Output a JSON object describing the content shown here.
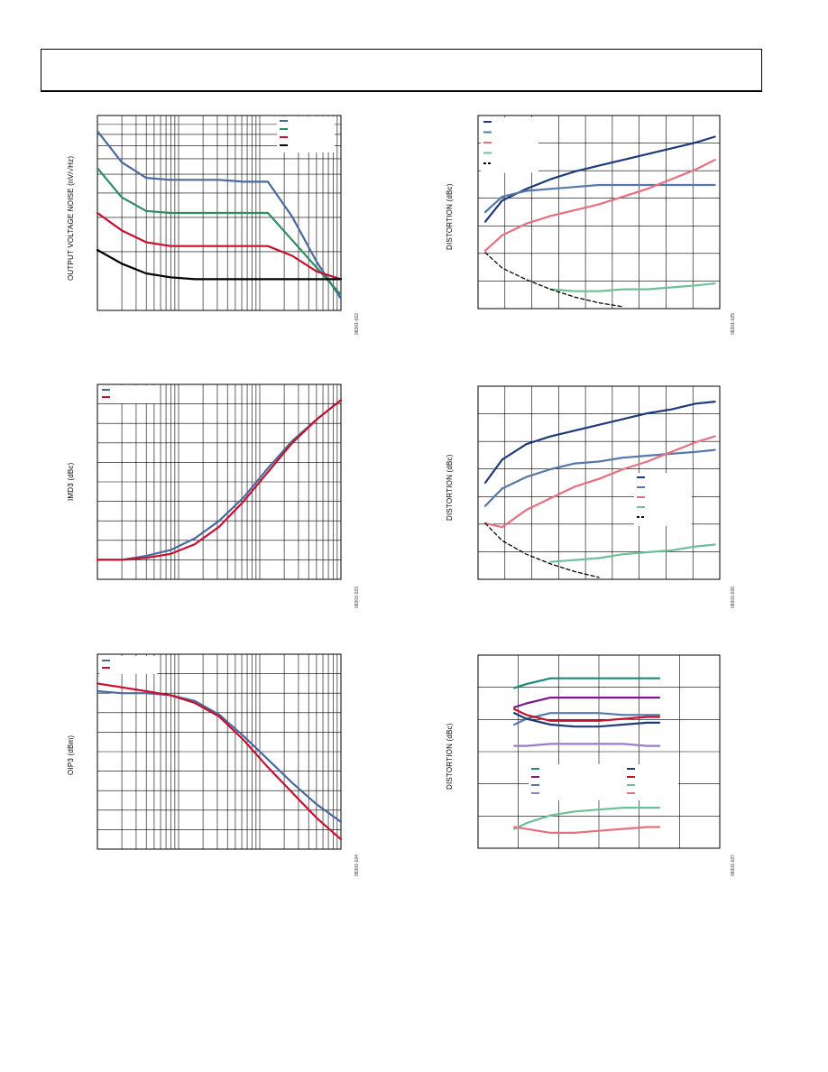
{
  "page": {
    "header": ""
  },
  "charts": [
    {
      "id": "c1",
      "ylabel": "OUTPUT VOLTAGE NOISE (nV/√Hz)",
      "fig_id": "08301-022",
      "xscale": "log",
      "xdecades": 3,
      "yscale": "log",
      "ydecades": 1,
      "legend_items": 4
    },
    {
      "id": "c2",
      "ylabel": "DISTORTION (dBc)",
      "fig_id": "08301-025",
      "xscale": "linear",
      "xdivs": 9,
      "ydivs": 7,
      "legend_items": 5
    },
    {
      "id": "c3",
      "ylabel": "IMD3 (dBc)",
      "fig_id": "08301-023",
      "xscale": "log",
      "xdecades": 3,
      "ydivs": 10,
      "legend_items": 2
    },
    {
      "id": "c4",
      "ylabel": "DISTORTION (dBc)",
      "fig_id": "08301-026",
      "xscale": "linear",
      "xdivs": 9,
      "ydivs": 7,
      "legend_items": 5
    },
    {
      "id": "c5",
      "ylabel": "OIP3 (dBm)",
      "fig_id": "08301-024",
      "xscale": "log",
      "xdecades": 3,
      "ydivs": 10,
      "legend_items": 2
    },
    {
      "id": "c6",
      "ylabel": "DISTORTION (dBc)",
      "fig_id": "08301-027",
      "xscale": "linear",
      "xdivs": 6,
      "ydivs": 6,
      "legend_items": 8
    }
  ],
  "colors": {
    "blue": "#4a6a9c",
    "green": "#2e8b63",
    "red": "#c8102e",
    "black": "#000000",
    "navy": "#1f3a7a",
    "steel": "#5577aa",
    "pink": "#e8707e",
    "mint": "#6fbf99",
    "teal": "#1a8a7a",
    "purple": "#7a1a8a",
    "lavender": "#9b7bc8"
  },
  "chart_data": [
    {
      "type": "line",
      "title": "",
      "xlabel": "",
      "ylabel": "OUTPUT VOLTAGE NOISE (nV/√Hz)",
      "x": [
        0,
        0.1,
        0.2,
        0.3,
        0.4,
        0.5,
        0.6,
        0.7,
        0.8,
        0.9,
        1.0
      ],
      "series": [
        {
          "color": "blue",
          "values": [
            0.92,
            0.76,
            0.68,
            0.67,
            0.67,
            0.67,
            0.66,
            0.66,
            0.48,
            0.25,
            0.06
          ]
        },
        {
          "color": "green",
          "values": [
            0.73,
            0.58,
            0.51,
            0.5,
            0.5,
            0.5,
            0.5,
            0.5,
            0.36,
            0.22,
            0.08
          ]
        },
        {
          "color": "red",
          "values": [
            0.5,
            0.41,
            0.35,
            0.33,
            0.33,
            0.33,
            0.33,
            0.33,
            0.28,
            0.2,
            0.16
          ]
        },
        {
          "color": "black",
          "values": [
            0.31,
            0.24,
            0.19,
            0.17,
            0.16,
            0.16,
            0.16,
            0.16,
            0.16,
            0.16,
            0.16
          ]
        }
      ]
    },
    {
      "type": "line",
      "title": "",
      "xlabel": "",
      "ylabel": "DISTORTION (dBc)",
      "x": [
        0.03,
        0.1,
        0.2,
        0.3,
        0.4,
        0.5,
        0.6,
        0.7,
        0.8,
        0.9,
        0.98
      ],
      "series": [
        {
          "color": "navy",
          "values": [
            0.45,
            0.56,
            0.62,
            0.67,
            0.71,
            0.74,
            0.77,
            0.8,
            0.83,
            0.86,
            0.89
          ]
        },
        {
          "color": "steel",
          "values": [
            0.5,
            0.58,
            0.61,
            0.62,
            0.63,
            0.64,
            0.64,
            0.64,
            0.64,
            0.64,
            0.64
          ]
        },
        {
          "color": "pink",
          "values": [
            0.3,
            0.38,
            0.44,
            0.48,
            0.51,
            0.54,
            0.58,
            0.62,
            0.67,
            0.72,
            0.77
          ]
        },
        {
          "color": "mint",
          "values": [
            null,
            null,
            null,
            0.1,
            0.09,
            0.09,
            0.1,
            0.1,
            0.11,
            0.12,
            0.13
          ]
        },
        {
          "color": "black",
          "dashed": true,
          "values": [
            0.29,
            0.21,
            0.15,
            0.1,
            0.06,
            0.03,
            0.01,
            null,
            null,
            null,
            null
          ]
        }
      ]
    },
    {
      "type": "line",
      "title": "",
      "xlabel": "",
      "ylabel": "IMD3 (dBc)",
      "x": [
        0,
        0.1,
        0.2,
        0.3,
        0.4,
        0.5,
        0.6,
        0.7,
        0.8,
        0.9,
        1.0
      ],
      "series": [
        {
          "color": "blue",
          "values": [
            0.1,
            0.1,
            0.12,
            0.15,
            0.21,
            0.3,
            0.42,
            0.57,
            0.71,
            0.82,
            0.92
          ]
        },
        {
          "color": "red",
          "values": [
            0.1,
            0.1,
            0.11,
            0.13,
            0.18,
            0.27,
            0.4,
            0.55,
            0.7,
            0.82,
            0.92
          ]
        }
      ]
    },
    {
      "type": "line",
      "title": "",
      "xlabel": "",
      "ylabel": "DISTORTION (dBc)",
      "x": [
        0.03,
        0.1,
        0.2,
        0.3,
        0.4,
        0.5,
        0.6,
        0.7,
        0.8,
        0.9,
        0.98
      ],
      "series": [
        {
          "color": "navy",
          "values": [
            0.5,
            0.62,
            0.7,
            0.74,
            0.77,
            0.8,
            0.83,
            0.86,
            0.88,
            0.91,
            0.92
          ]
        },
        {
          "color": "steel",
          "values": [
            0.38,
            0.47,
            0.53,
            0.57,
            0.6,
            0.61,
            0.63,
            0.64,
            0.65,
            0.66,
            0.67
          ]
        },
        {
          "color": "pink",
          "values": [
            0.29,
            0.27,
            0.36,
            0.42,
            0.48,
            0.52,
            0.57,
            0.61,
            0.66,
            0.71,
            0.74
          ]
        },
        {
          "color": "mint",
          "values": [
            null,
            null,
            null,
            0.09,
            0.1,
            0.11,
            0.13,
            0.14,
            0.15,
            0.17,
            0.18
          ]
        },
        {
          "color": "black",
          "dashed": true,
          "values": [
            0.29,
            0.2,
            0.13,
            0.08,
            0.04,
            0.01,
            null,
            null,
            null,
            null,
            null
          ]
        }
      ]
    },
    {
      "type": "line",
      "title": "",
      "xlabel": "",
      "ylabel": "OIP3 (dBm)",
      "x": [
        0,
        0.1,
        0.2,
        0.3,
        0.4,
        0.5,
        0.6,
        0.7,
        0.8,
        0.9,
        1.0
      ],
      "series": [
        {
          "color": "blue",
          "values": [
            0.81,
            0.8,
            0.8,
            0.79,
            0.76,
            0.69,
            0.58,
            0.46,
            0.34,
            0.23,
            0.14
          ]
        },
        {
          "color": "red",
          "values": [
            0.85,
            0.83,
            0.81,
            0.79,
            0.75,
            0.68,
            0.56,
            0.42,
            0.29,
            0.16,
            0.05
          ]
        }
      ]
    },
    {
      "type": "line",
      "title": "",
      "xlabel": "",
      "ylabel": "DISTORTION (dBc)",
      "x": [
        0.15,
        0.2,
        0.3,
        0.4,
        0.5,
        0.6,
        0.7,
        0.75
      ],
      "series": [
        {
          "color": "teal",
          "values": [
            0.83,
            0.85,
            0.88,
            0.88,
            0.88,
            0.88,
            0.88,
            0.88
          ]
        },
        {
          "color": "purple",
          "values": [
            0.73,
            0.75,
            0.78,
            0.78,
            0.78,
            0.78,
            0.78,
            0.78
          ]
        },
        {
          "color": "steel",
          "values": [
            0.64,
            0.67,
            0.7,
            0.7,
            0.7,
            0.69,
            0.69,
            0.69
          ]
        },
        {
          "color": "lavender",
          "values": [
            0.53,
            0.53,
            0.54,
            0.54,
            0.54,
            0.54,
            0.53,
            0.53
          ]
        },
        {
          "color": "navy",
          "values": [
            0.7,
            0.67,
            0.64,
            0.63,
            0.63,
            0.64,
            0.65,
            0.65
          ]
        },
        {
          "color": "red",
          "values": [
            0.72,
            0.69,
            0.66,
            0.66,
            0.66,
            0.67,
            0.68,
            0.68
          ]
        },
        {
          "color": "mint",
          "values": [
            0.1,
            0.13,
            0.17,
            0.19,
            0.2,
            0.21,
            0.21,
            0.21
          ]
        },
        {
          "color": "pink",
          "values": [
            0.11,
            0.1,
            0.08,
            0.08,
            0.09,
            0.1,
            0.11,
            0.11
          ]
        }
      ]
    }
  ]
}
